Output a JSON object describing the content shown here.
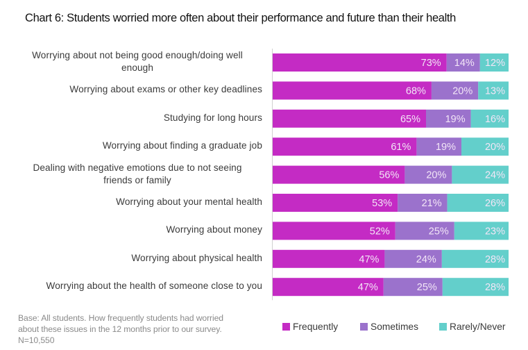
{
  "chart_data": {
    "type": "bar",
    "orientation": "horizontal",
    "stacked": true,
    "normalized": true,
    "title": "Chart 6: Students worried more often about their performance and future than their health",
    "xlabel": "",
    "ylabel": "",
    "grid": false,
    "legend_position": "bottom-right",
    "categories": [
      "Worrying about not being good enough/doing well enough",
      "Worrying about exams or other key deadlines",
      "Studying for long hours",
      "Worrying about finding a graduate job",
      "Dealing with negative emotions due to not seeing friends or family",
      "Worrying about your mental health",
      "Worrying about money",
      "Worrying about physical health",
      "Worrying about the health of someone close to you"
    ],
    "category_lines": [
      [
        "Worrying about not being good enough/doing well",
        "enough"
      ],
      [
        "Worrying about exams or other key deadlines"
      ],
      [
        "Studying for long hours"
      ],
      [
        "Worrying about finding a graduate job"
      ],
      [
        "Dealing with negative emotions due to not seeing",
        "friends or family"
      ],
      [
        "Worrying about your mental health"
      ],
      [
        "Worrying about money"
      ],
      [
        "Worrying about physical health"
      ],
      [
        "Worrying about the health of someone close to you"
      ]
    ],
    "series": [
      {
        "name": "Frequently",
        "color": "#c42bc4",
        "values": [
          73,
          68,
          65,
          61,
          56,
          53,
          52,
          47,
          47
        ]
      },
      {
        "name": "Sometimes",
        "color": "#9b72cc",
        "values": [
          14,
          20,
          19,
          19,
          20,
          21,
          25,
          24,
          25
        ]
      },
      {
        "name": "Rarely/Never",
        "color": "#63cfcb",
        "values": [
          12,
          13,
          16,
          20,
          24,
          26,
          23,
          28,
          28
        ]
      }
    ],
    "value_suffix": "%",
    "label_color": "#f3e6f7",
    "axis_color": "#d0d0d0"
  },
  "note": {
    "lines": [
      "Base: All students. How frequently students had worried",
      "about these issues in the 12 months prior to our survey.",
      "N=10,550"
    ]
  }
}
